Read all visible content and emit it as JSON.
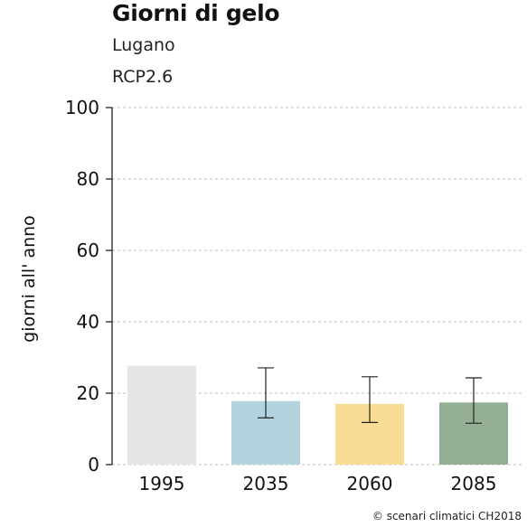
{
  "chart_data": {
    "type": "bar",
    "title": "Giorni di gelo",
    "subtitle": [
      "Lugano",
      "RCP2.6"
    ],
    "ylabel": "giorni all' anno",
    "ylim": [
      0,
      100
    ],
    "yticks": [
      0,
      20,
      40,
      60,
      80,
      100
    ],
    "grid": true,
    "categories": [
      "1995",
      "2035",
      "2060",
      "2085"
    ],
    "values": [
      27.7,
      17.8,
      17.0,
      17.4
    ],
    "error_low": [
      null,
      13.1,
      11.8,
      11.6
    ],
    "error_high": [
      null,
      27.1,
      24.6,
      24.3
    ],
    "colors": [
      "#e5e5e5",
      "#b3d4de",
      "#f9dc94",
      "#94ae93"
    ]
  },
  "credit": "© scenari climatici CH2018"
}
